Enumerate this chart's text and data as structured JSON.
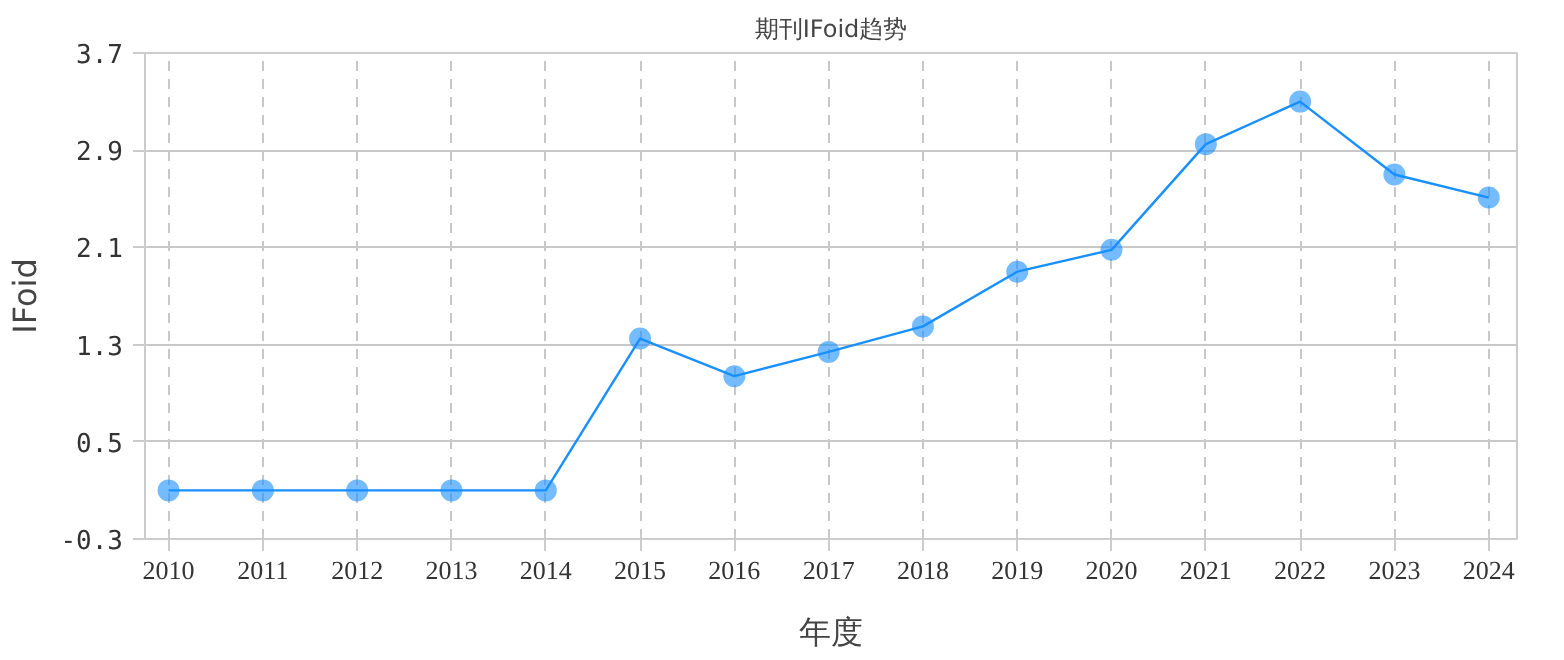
{
  "chart_data": {
    "type": "line",
    "title": "期刊IFoid趋势",
    "xlabel": "年度",
    "ylabel": "IFoid",
    "categories": [
      "2010",
      "2011",
      "2012",
      "2013",
      "2014",
      "2015",
      "2016",
      "2017",
      "2018",
      "2019",
      "2020",
      "2021",
      "2022",
      "2023",
      "2024"
    ],
    "series": [
      {
        "color": "#1890ff",
        "values": [
          0.1,
          0.1,
          0.1,
          0.1,
          0.1,
          1.35,
          1.04,
          1.24,
          1.45,
          1.9,
          2.08,
          2.95,
          3.3,
          2.7,
          2.51
        ]
      }
    ],
    "ylim": [
      -0.3,
      3.7
    ],
    "yticks": [
      -0.3,
      0.5,
      1.3,
      2.1,
      2.9,
      3.7
    ],
    "grid": true,
    "marker": "circle"
  }
}
